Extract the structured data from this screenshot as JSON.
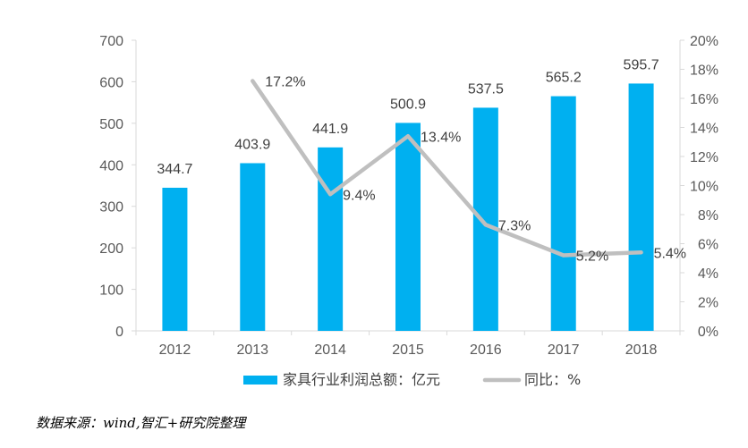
{
  "chart_data": {
    "type": "bar+line",
    "categories": [
      "2012",
      "2013",
      "2014",
      "2015",
      "2016",
      "2017",
      "2018"
    ],
    "series": [
      {
        "name": "家具行业利润总额：亿元",
        "type": "bar",
        "axis": "left",
        "color": "#00B0F0",
        "values": [
          344.7,
          403.9,
          441.9,
          500.9,
          537.5,
          565.2,
          595.7
        ],
        "labels": [
          "344.7",
          "403.9",
          "441.9",
          "500.9",
          "537.5",
          "565.2",
          "595.7"
        ]
      },
      {
        "name": "同比：%",
        "type": "line",
        "axis": "right",
        "color": "#BFBFBF",
        "values": [
          null,
          17.2,
          9.4,
          13.4,
          7.3,
          5.2,
          5.4
        ],
        "labels": [
          "",
          "17.2%",
          "9.4%",
          "13.4%",
          "7.3%",
          "5.2%",
          "5.4%"
        ]
      }
    ],
    "y_left": {
      "min": 0,
      "max": 700,
      "step": 100,
      "ticks": [
        "0",
        "100",
        "200",
        "300",
        "400",
        "500",
        "600",
        "700"
      ]
    },
    "y_right": {
      "min": 0,
      "max": 20,
      "step": 2,
      "ticks": [
        "0%",
        "2%",
        "4%",
        "6%",
        "8%",
        "10%",
        "12%",
        "14%",
        "16%",
        "18%",
        "20%"
      ]
    },
    "grid": false,
    "legend_position": "bottom"
  },
  "source_text": "数据来源：wind,智汇+研究院整理"
}
